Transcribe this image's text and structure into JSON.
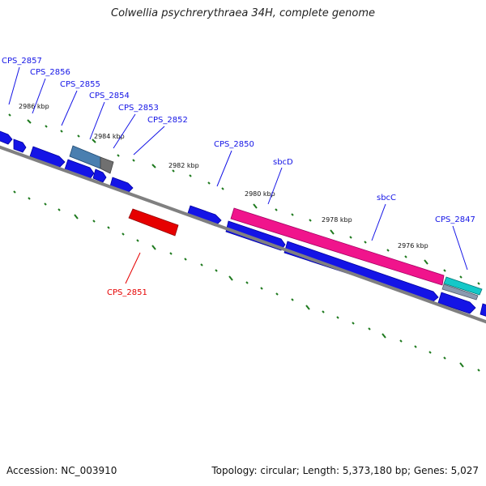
{
  "title": "Colwellia psychrerythraea 34H, complete genome",
  "footer": {
    "accession": "Accession: NC_003910",
    "summary": "Topology: circular; Length: 5,373,180 bp; Genes: 5,027"
  },
  "colors": {
    "backbone": "#808080",
    "forward_cds": "#1414e6",
    "reverse_cds": "#e60000",
    "highlight_pink": "#f0148c",
    "highlight_cyan": "#14c8c8",
    "steel_blue": "#4a7fb0",
    "tick_green": "#1e7a1e"
  },
  "kbp_labels": [
    "2986 kbp",
    "2984 kbp",
    "2982 kbp",
    "2980 kbp",
    "2978 kbp",
    "2976 kbp"
  ],
  "gene_labels": [
    {
      "name": "CPS_2857",
      "strand": "forward"
    },
    {
      "name": "CPS_2856",
      "strand": "forward"
    },
    {
      "name": "CPS_2855",
      "strand": "forward"
    },
    {
      "name": "CPS_2854",
      "strand": "forward"
    },
    {
      "name": "CPS_2853",
      "strand": "forward"
    },
    {
      "name": "CPS_2852",
      "strand": "forward"
    },
    {
      "name": "CPS_2850",
      "strand": "forward"
    },
    {
      "name": "sbcD",
      "strand": "forward"
    },
    {
      "name": "sbcC",
      "strand": "forward"
    },
    {
      "name": "CPS_2847",
      "strand": "forward"
    },
    {
      "name": "CPS_2851",
      "strand": "reverse"
    }
  ]
}
